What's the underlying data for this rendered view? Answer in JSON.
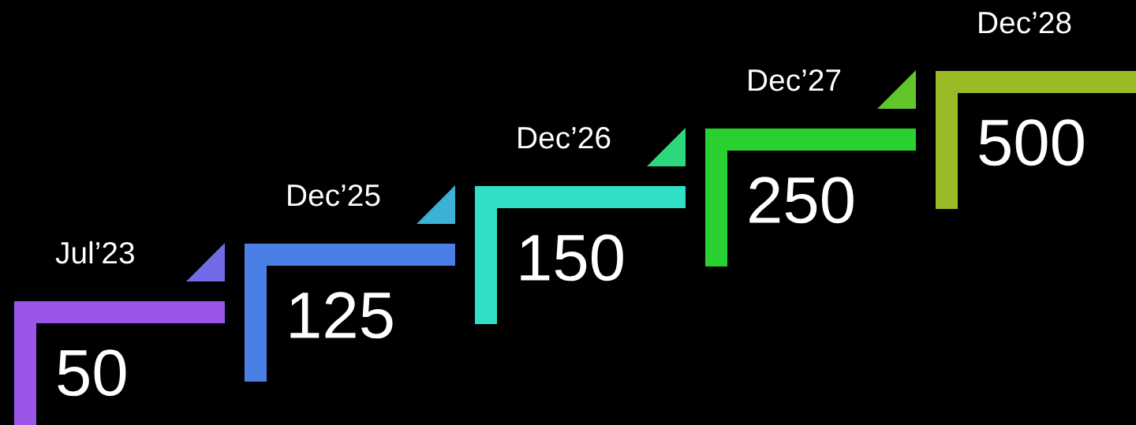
{
  "chart_data": {
    "type": "other",
    "categories": [
      "Jul’23",
      "Dec’25",
      "Dec’26",
      "Dec’27",
      "Dec’28"
    ],
    "values": [
      50,
      125,
      150,
      250,
      500
    ],
    "colors": [
      "#9b55e8",
      "#4a80e6",
      "#30e0c6",
      "#28d130",
      "#9bbb26"
    ],
    "data_labels": true
  }
}
